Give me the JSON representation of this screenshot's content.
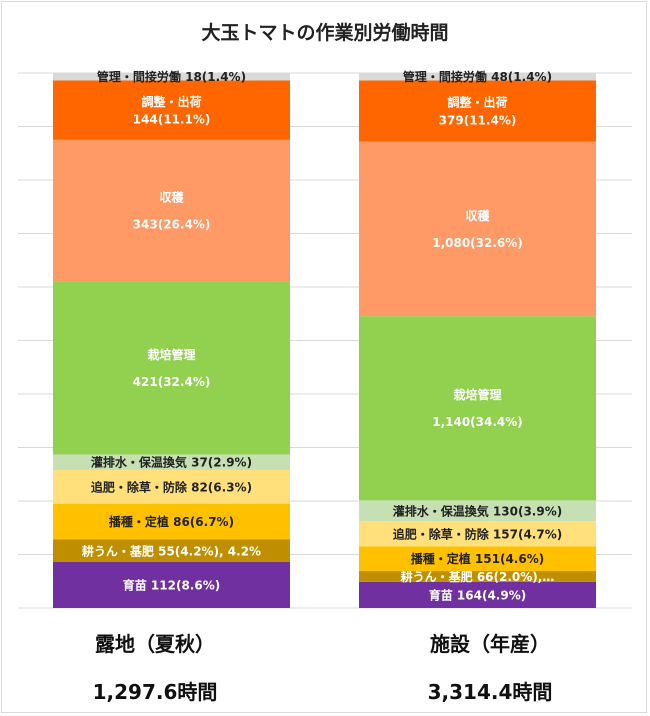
{
  "chart_data": {
    "type": "stacked-bar",
    "title": "大玉トマトの作業別労働時間",
    "categories": [
      "露地（夏秋）",
      "施設（年産）"
    ],
    "totals": [
      "1,297.6時間",
      "3,314.4時間"
    ],
    "series": [
      {
        "name": "育苗",
        "color": "#7030a0",
        "values": [
          8.6,
          4.9
        ],
        "labels": [
          "育苗 112(8.6%)",
          "育苗 164(4.9%)"
        ],
        "text_color": "#ffffff"
      },
      {
        "name": "耕うん・基肥",
        "color": "#bf8f00",
        "values": [
          4.2,
          2.0
        ],
        "labels": [
          "耕うん・基肥 55(4.2%), 4.2%",
          "耕うん・基肥 66(2.0%),…"
        ],
        "text_color": "#ffffff"
      },
      {
        "name": "播種・定植",
        "color": "#ffc000",
        "values": [
          6.7,
          4.6
        ],
        "labels": [
          "播種・定植 86(6.7%)",
          "播種・定植 151(4.6%)"
        ],
        "text_color": "#222222"
      },
      {
        "name": "追肥・除草・防除",
        "color": "#ffe07a",
        "values": [
          6.3,
          4.7
        ],
        "labels": [
          "追肥・除草・防除 82(6.3%)",
          "追肥・除草・防除 157(4.7%)"
        ],
        "text_color": "#222222"
      },
      {
        "name": "灌排水・保温換気",
        "color": "#c6e0b4",
        "values": [
          2.9,
          3.9
        ],
        "labels": [
          "灌排水・保温換気 37(2.9%)",
          "灌排水・保温換気 130(3.9%)"
        ],
        "text_color": "#222222"
      },
      {
        "name": "栽培管理",
        "color": "#92d050",
        "values": [
          32.4,
          34.4
        ],
        "labels": [
          [
            "栽培管理",
            "421(32.4%)"
          ],
          [
            "栽培管理",
            "1,140(34.4%)"
          ]
        ],
        "text_color": "#ffffff"
      },
      {
        "name": "収穫",
        "color": "#ff9966",
        "values": [
          26.4,
          32.6
        ],
        "labels": [
          [
            "収穫",
            "343(26.4%)"
          ],
          [
            "収穫",
            "1,080(32.6%)"
          ]
        ],
        "text_color": "#ffffff"
      },
      {
        "name": "調整・出荷",
        "color": "#ff6600",
        "values": [
          11.1,
          11.4
        ],
        "labels": [
          [
            "調整・出荷",
            "144(11.1%)"
          ],
          [
            "調整・出荷",
            "379(11.4%)"
          ]
        ],
        "text_color": "#ffffff"
      },
      {
        "name": "管理・間接労働",
        "color": "#d9d9d9",
        "values": [
          1.4,
          1.4
        ],
        "labels": [
          "管理・間接労働 18(1.4%)",
          "管理・間接労働 48(1.4%)"
        ],
        "text_color": "#222222"
      }
    ],
    "ylim": [
      0,
      100
    ],
    "grid": true
  }
}
